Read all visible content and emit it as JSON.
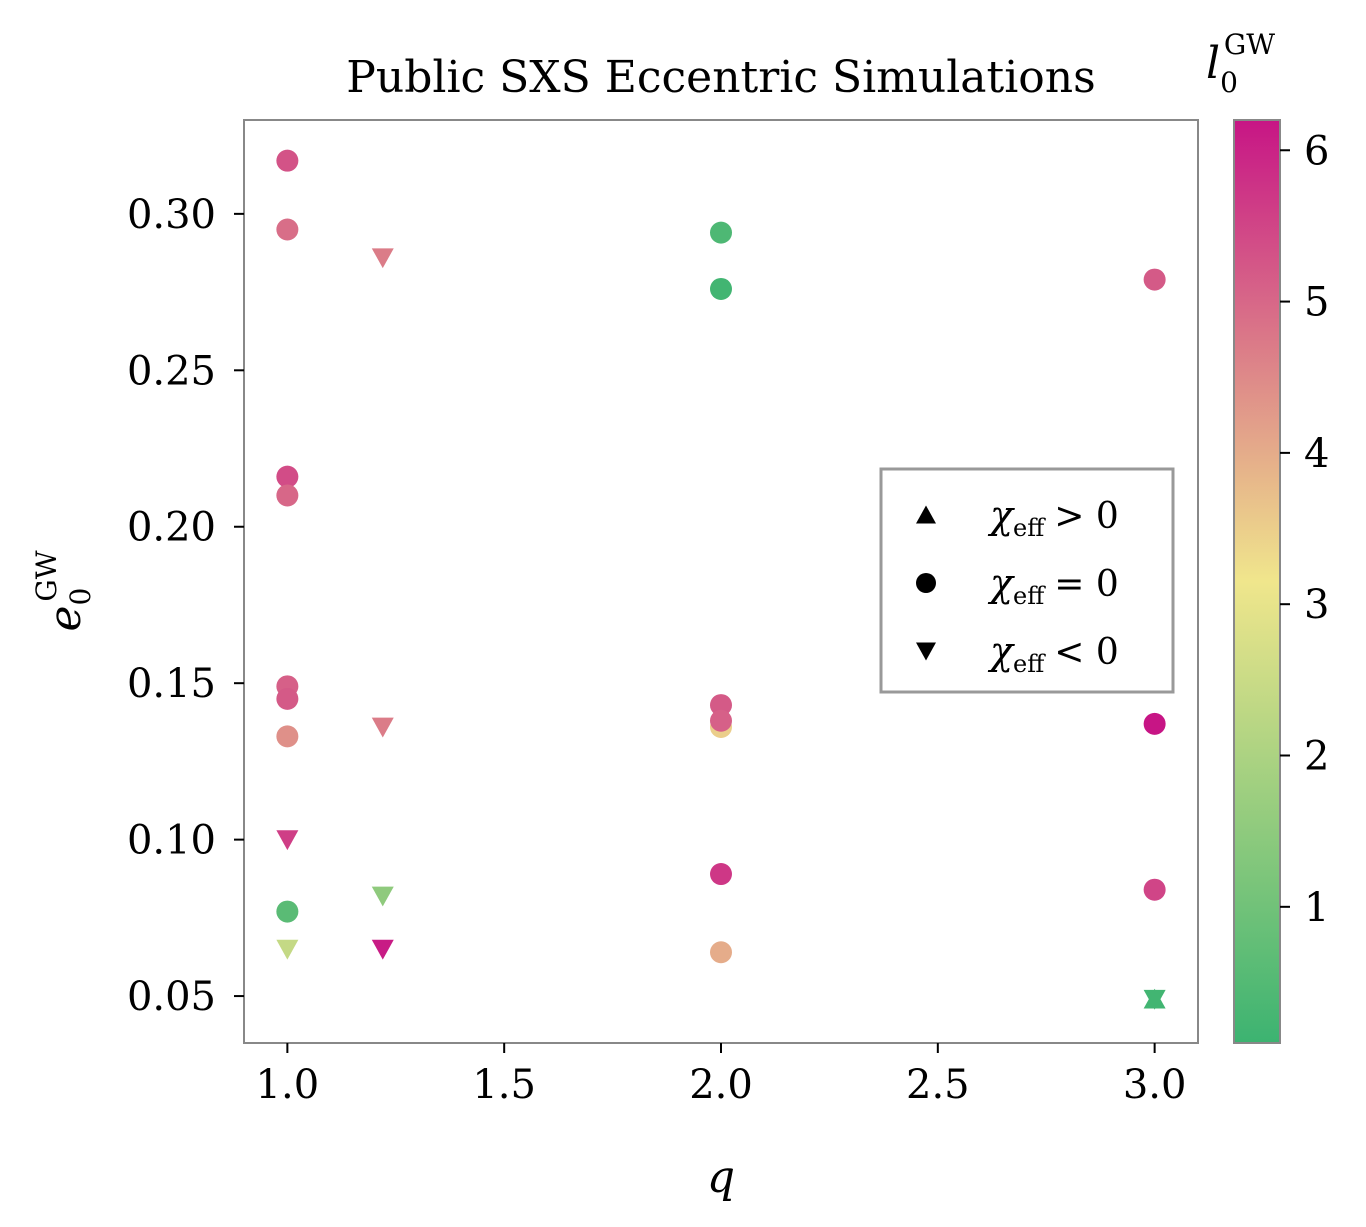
{
  "chart_data": {
    "type": "scatter",
    "title": "Public SXS Eccentric Simulations",
    "xlabel": "q",
    "ylabel": {
      "base": "e",
      "sub": "0",
      "sup": "GW"
    },
    "xlim": [
      0.9,
      3.1
    ],
    "ylim": [
      0.035,
      0.33
    ],
    "xticks": [
      1.0,
      1.5,
      2.0,
      2.5,
      3.0
    ],
    "xtick_labels": [
      "1.0",
      "1.5",
      "2.0",
      "2.5",
      "3.0"
    ],
    "yticks": [
      0.05,
      0.1,
      0.15,
      0.2,
      0.25,
      0.3
    ],
    "ytick_labels": [
      "0.05",
      "0.10",
      "0.15",
      "0.20",
      "0.25",
      "0.30"
    ],
    "grid": false,
    "colorbar": {
      "label": {
        "base": "l",
        "sub": "0",
        "sup": "GW"
      },
      "range": [
        0.1,
        6.2
      ],
      "ticks": [
        1,
        2,
        3,
        4,
        5,
        6
      ],
      "tick_labels": [
        "1",
        "2",
        "3",
        "4",
        "5",
        "6"
      ],
      "colormap_stops": [
        "#3cb371",
        "#f0e68c",
        "#c71585"
      ]
    },
    "legend": {
      "position": "center-right",
      "entries": [
        {
          "marker": "triangle-up",
          "symbol": "χ",
          "sub": "eff",
          "relation": "> 0"
        },
        {
          "marker": "circle",
          "symbol": "χ",
          "sub": "eff",
          "relation": "= 0"
        },
        {
          "marker": "triangle-down",
          "symbol": "χ",
          "sub": "eff",
          "relation": "< 0"
        }
      ]
    },
    "points": [
      {
        "q": 1.0,
        "e": 0.317,
        "l": 5.3,
        "marker": "circle"
      },
      {
        "q": 1.0,
        "e": 0.295,
        "l": 4.9,
        "marker": "circle"
      },
      {
        "q": 1.0,
        "e": 0.216,
        "l": 5.4,
        "marker": "circle"
      },
      {
        "q": 1.0,
        "e": 0.21,
        "l": 5.0,
        "marker": "circle"
      },
      {
        "q": 1.0,
        "e": 0.149,
        "l": 5.1,
        "marker": "circle"
      },
      {
        "q": 1.0,
        "e": 0.145,
        "l": 5.2,
        "marker": "circle"
      },
      {
        "q": 1.0,
        "e": 0.133,
        "l": 4.4,
        "marker": "circle"
      },
      {
        "q": 1.0,
        "e": 0.077,
        "l": 0.6,
        "marker": "circle"
      },
      {
        "q": 1.0,
        "e": 0.1,
        "l": 5.6,
        "marker": "triangle-down"
      },
      {
        "q": 1.0,
        "e": 0.065,
        "l": 2.4,
        "marker": "triangle-down"
      },
      {
        "q": 1.22,
        "e": 0.286,
        "l": 4.7,
        "marker": "triangle-down"
      },
      {
        "q": 1.22,
        "e": 0.136,
        "l": 4.7,
        "marker": "triangle-down"
      },
      {
        "q": 1.22,
        "e": 0.082,
        "l": 1.5,
        "marker": "triangle-down"
      },
      {
        "q": 1.22,
        "e": 0.065,
        "l": 6.1,
        "marker": "triangle-down"
      },
      {
        "q": 2.0,
        "e": 0.294,
        "l": 0.4,
        "marker": "circle"
      },
      {
        "q": 2.0,
        "e": 0.276,
        "l": 0.2,
        "marker": "circle"
      },
      {
        "q": 2.0,
        "e": 0.136,
        "l": 3.5,
        "marker": "circle"
      },
      {
        "q": 2.0,
        "e": 0.143,
        "l": 5.2,
        "marker": "circle"
      },
      {
        "q": 2.0,
        "e": 0.138,
        "l": 5.1,
        "marker": "circle"
      },
      {
        "q": 2.0,
        "e": 0.089,
        "l": 5.7,
        "marker": "circle"
      },
      {
        "q": 2.0,
        "e": 0.064,
        "l": 4.0,
        "marker": "circle"
      },
      {
        "q": 3.0,
        "e": 0.279,
        "l": 5.2,
        "marker": "circle"
      },
      {
        "q": 3.0,
        "e": 0.137,
        "l": 6.2,
        "marker": "circle"
      },
      {
        "q": 3.0,
        "e": 0.084,
        "l": 5.5,
        "marker": "circle"
      },
      {
        "q": 3.0,
        "e": 0.049,
        "l": 0.2,
        "marker": "triangle-up"
      },
      {
        "q": 3.0,
        "e": 0.049,
        "l": 0.2,
        "marker": "triangle-down"
      }
    ]
  }
}
